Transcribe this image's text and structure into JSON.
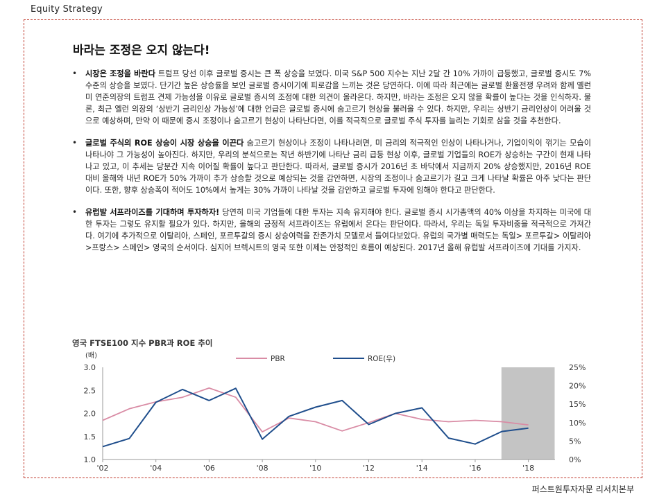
{
  "header": {
    "section_label": "Equity  Strategy",
    "footer_label": "퍼스트원투자자문 리서치본부"
  },
  "document": {
    "title": "바라는 조정은 오지 않는다!",
    "bullets": [
      {
        "lead": "시장은 조정을 바란다",
        "text": " 트럼프 당선 이후 글로벌 증시는 큰 폭 상승을 보였다. 미국 S&P 500 지수는 지난 2달 간 10% 가까이 급등했고, 글로벌 증시도 7% 수준의 상승을 보였다. 단기간 높은 상승률을 보인 글로벌 증시이기에 피로감을 느끼는 것은 당연하다. 이에 따라 최근에는 글로벌 환율전쟁 우려와 함께 옐런 미 연준의장의 트럼프 견제 가능성을 이유로 글로벌 증시의 조정에 대한 의견이 올라온다. 하지만, 바라는 조정은 오지 않을 확률이 높다는 것을 인식하자. 물론, 최근 옐런 의장의 ‘상반기 금리인상 가능성’에 대한 언급은 글로벌 증시에 숨고르기 현상을 불러올 수 있다. 하지만, 우리는 상반기 금리인상이 어려울 것으로 예상하며, 만약 이 때문에 증시 조정이나 숨고르기 현상이 나타난다면, 이를 적극적으로 글로벌 주식 투자를 늘리는 기회로 삼을 것을 추천한다."
      },
      {
        "lead": "글로벌 주식의 ROE 상승이 시장 상승을 이끈다",
        "text": " 숨고르기 현상이나 조정이 나타나려면, 미 금리의 적극적인 인상이 나타나거나, 기업이익이 꺾기는 모습이 나타나야 그 가능성이 높아진다. 하지만, 우리의 분석으로는 작년 하반기에 나타난 금리 급등 현상 이후, 글로벌 기업들의 ROE가 상승하는 구간이 현재 나타나고 있고, 이 추세는 당분간 지속 이어질 확률이 높다고 판단한다. 따라서, 글로벌 증시가 2016년 초 바닥에서 지금까지 20% 상승했지만, 2016년 ROE 대비 올해와 내년 ROE가 50% 가까이 추가 상승할 것으로 예상되는 것을 감안하면, 시장의 조정이나 숨고르기가 길고 크게 나타날 확률은 아주 낮다는 판단이다. 또한, 향후 상승폭이 적어도 10%에서 높게는 30% 가까이 나타날 것을 감안하고 글로벌 투자에 임해야 한다고 판단한다."
      },
      {
        "lead": "유럽발 서프라이즈를 기대하며 투자하자!",
        "text": " 당연히 미국 기업들에 대한 투자는 지속 유지해야 한다. 글로벌 증시 시가총액의 40% 이상을 차지하는 미국에 대한 투자는 그렇도 유지할 필요가 있다. 하지만, 올해의 긍정적 서프라이즈는 유럽에서 온다는 판단이다. 따라서, 우리는 독일 투자비중을 적극적으로 가져간다. 여기에 추가적으로 이탈리아, 스페인, 포르투갈의 증시 상승여력을 잔존가치 모델로서 들여다보았다. 유럽의 국가별 매력도는 독일> 포르투갈> 이탈리아>프랑스> 스페인> 영국의 순서이다. 심지어 브렉시트의 영국 또한 이제는 안정적인 흐름이 예상된다. 2017년 올해 유럽발 서프라이즈에 기대를 가지자."
      }
    ]
  },
  "chart_data": {
    "type": "line",
    "title": "영국 FTSE100 지수 PBR과 ROE 추이",
    "ylabel_left": "(배)",
    "ylabel_right": "",
    "x": [
      2002,
      2003,
      2004,
      2005,
      2006,
      2007,
      2008,
      2009,
      2010,
      2011,
      2012,
      2013,
      2014,
      2015,
      2016,
      2017,
      2018
    ],
    "x_tick_labels": [
      "'02",
      "'04",
      "'06",
      "'08",
      "'10",
      "'12",
      "'14",
      "'16",
      "'18"
    ],
    "x_tick_values": [
      2002,
      2004,
      2006,
      2008,
      2010,
      2012,
      2014,
      2016,
      2018
    ],
    "ylim_left": [
      1.0,
      3.0
    ],
    "y_left_ticks": [
      "1.0",
      "1.5",
      "2.0",
      "2.5",
      "3.0"
    ],
    "ylim_right": [
      0,
      25
    ],
    "y_right_ticks": [
      "0%",
      "5%",
      "10%",
      "15%",
      "20%",
      "25%"
    ],
    "shaded_region": [
      2017,
      2019
    ],
    "series": [
      {
        "name": "PBR",
        "axis": "left",
        "color": "#d98ca5",
        "values": [
          1.85,
          2.1,
          2.25,
          2.35,
          2.55,
          2.35,
          1.6,
          1.9,
          1.82,
          1.62,
          1.8,
          2.0,
          1.87,
          1.82,
          1.85,
          1.82,
          1.75
        ]
      },
      {
        "name": "ROE(우)",
        "axis": "right",
        "color": "#1f4e8c",
        "values": [
          3.5,
          5.7,
          15.5,
          19.0,
          16.0,
          19.3,
          5.5,
          11.7,
          14.2,
          16.0,
          9.5,
          12.5,
          14.0,
          5.8,
          4.2,
          7.6,
          8.5
        ]
      }
    ],
    "legend_position": "top"
  }
}
